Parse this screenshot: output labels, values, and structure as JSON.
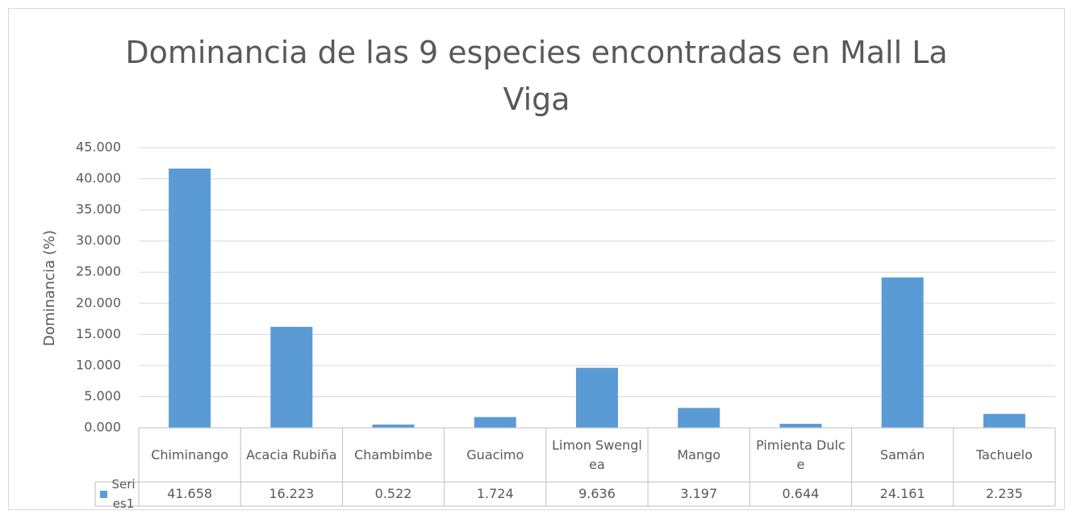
{
  "chart_data": {
    "type": "bar",
    "title": "Dominancia de las 9 especies encontradas en Mall La Viga",
    "y_label": "Dominancia (%)",
    "categories": [
      "Chiminango",
      "Acacia Rubiña",
      "Chambimbe",
      "Guacimo",
      "Limon Swenglea",
      "Mango",
      "Pimienta Dulce",
      "Samán",
      "Tachuelo"
    ],
    "series": [
      {
        "name": "Series1",
        "color": "#5b9bd5",
        "values": [
          41.658,
          16.223,
          0.522,
          1.724,
          9.636,
          3.197,
          0.644,
          24.161,
          2.235
        ]
      }
    ],
    "ylim": [
      0,
      45
    ],
    "yticks": [
      {
        "value": 0,
        "label": "0.000"
      },
      {
        "value": 5,
        "label": "5.000"
      },
      {
        "value": 10,
        "label": "10.000"
      },
      {
        "value": 15,
        "label": "15.000"
      },
      {
        "value": 20,
        "label": "20.000"
      },
      {
        "value": 25,
        "label": "25.000"
      },
      {
        "value": 30,
        "label": "30.000"
      },
      {
        "value": 35,
        "label": "35.000"
      },
      {
        "value": 40,
        "label": "40.000"
      },
      {
        "value": 45,
        "label": "45.000"
      }
    ],
    "grid": true,
    "data_table": true
  }
}
